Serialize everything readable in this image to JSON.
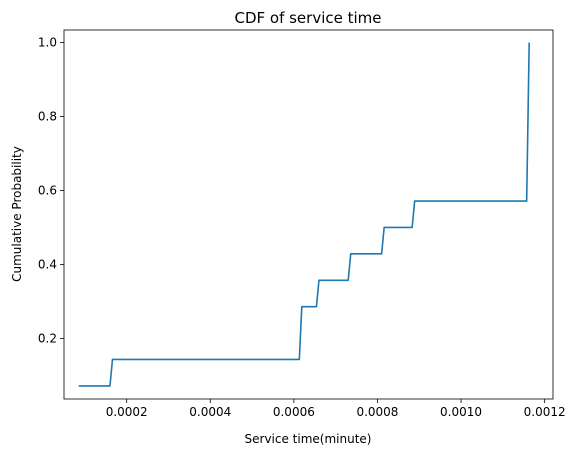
{
  "chart_data": {
    "type": "line",
    "title": "CDF of service time",
    "xlabel": "Service time(minute)",
    "ylabel": "Cumulative Probability",
    "xlim": [
      5e-05,
      0.00122
    ],
    "ylim": [
      0.036,
      1.034
    ],
    "xticks": [
      "0.0002",
      "0.0004",
      "0.0006",
      "0.0008",
      "0.0010",
      "0.0012"
    ],
    "yticks": [
      "0.2",
      "0.4",
      "0.6",
      "0.8",
      "1.0"
    ],
    "xtick_values": [
      0.0002,
      0.0004,
      0.0006,
      0.0008,
      0.001,
      0.0012
    ],
    "ytick_values": [
      0.2,
      0.4,
      0.6,
      0.8,
      1.0
    ],
    "grid": false,
    "series": [
      {
        "color": "#1f77b4",
        "x": [
          8.5e-05,
          0.00016,
          0.000166,
          0.000613,
          0.000619,
          0.000654,
          0.00066,
          0.00073,
          0.000736,
          0.00081,
          0.000816,
          0.000883,
          0.000889,
          0.001157,
          0.001163
        ],
        "y": [
          0.0714,
          0.0714,
          0.1429,
          0.1429,
          0.2857,
          0.2857,
          0.3571,
          0.3571,
          0.4286,
          0.4286,
          0.5,
          0.5,
          0.5714,
          0.5714,
          1.0
        ]
      }
    ]
  }
}
